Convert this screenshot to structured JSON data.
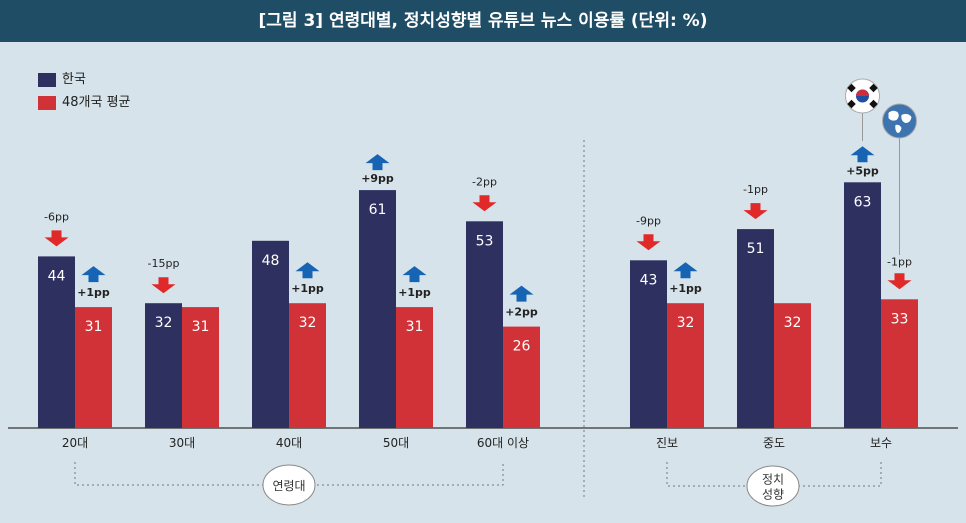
{
  "title": "[그림 3] 연령대별, 정치성향별 유튜브 뉴스 이용률 (단위: %)",
  "colors": {
    "korea": "#2e3160",
    "avg": "#d03237",
    "up": "#1864b4",
    "down": "#e02a2a",
    "header": "#1f4d66",
    "background": "#d6e3ea"
  },
  "legend": [
    {
      "label": "한국",
      "color": "#2e3160"
    },
    {
      "label": "48개국 평균",
      "color": "#d03237"
    }
  ],
  "groups": {
    "age": {
      "label": "연령대"
    },
    "politics": {
      "label": "정치\n성향"
    }
  },
  "icons": {
    "korea": "korea-flag-icon",
    "world": "globe-icon"
  },
  "chart_data": {
    "type": "bar",
    "categories": [
      "20대",
      "30대",
      "40대",
      "50대",
      "60대 이상",
      "진보",
      "중도",
      "보수"
    ],
    "series": [
      {
        "name": "한국",
        "values": [
          44,
          32,
          48,
          61,
          53,
          43,
          51,
          63
        ]
      },
      {
        "name": "48개국 평균",
        "values": [
          31,
          31,
          32,
          31,
          26,
          32,
          32,
          33
        ]
      }
    ],
    "change": {
      "한국": [
        "-6pp",
        "-15pp",
        "",
        "+9pp",
        "-2pp",
        "-9pp",
        "-1pp",
        "+5pp"
      ],
      "48개국 평균": [
        "+1pp",
        "",
        "+1pp",
        "+1pp",
        "+2pp",
        "+1pp",
        "",
        "-1pp"
      ]
    },
    "ylim": [
      0,
      75
    ]
  }
}
